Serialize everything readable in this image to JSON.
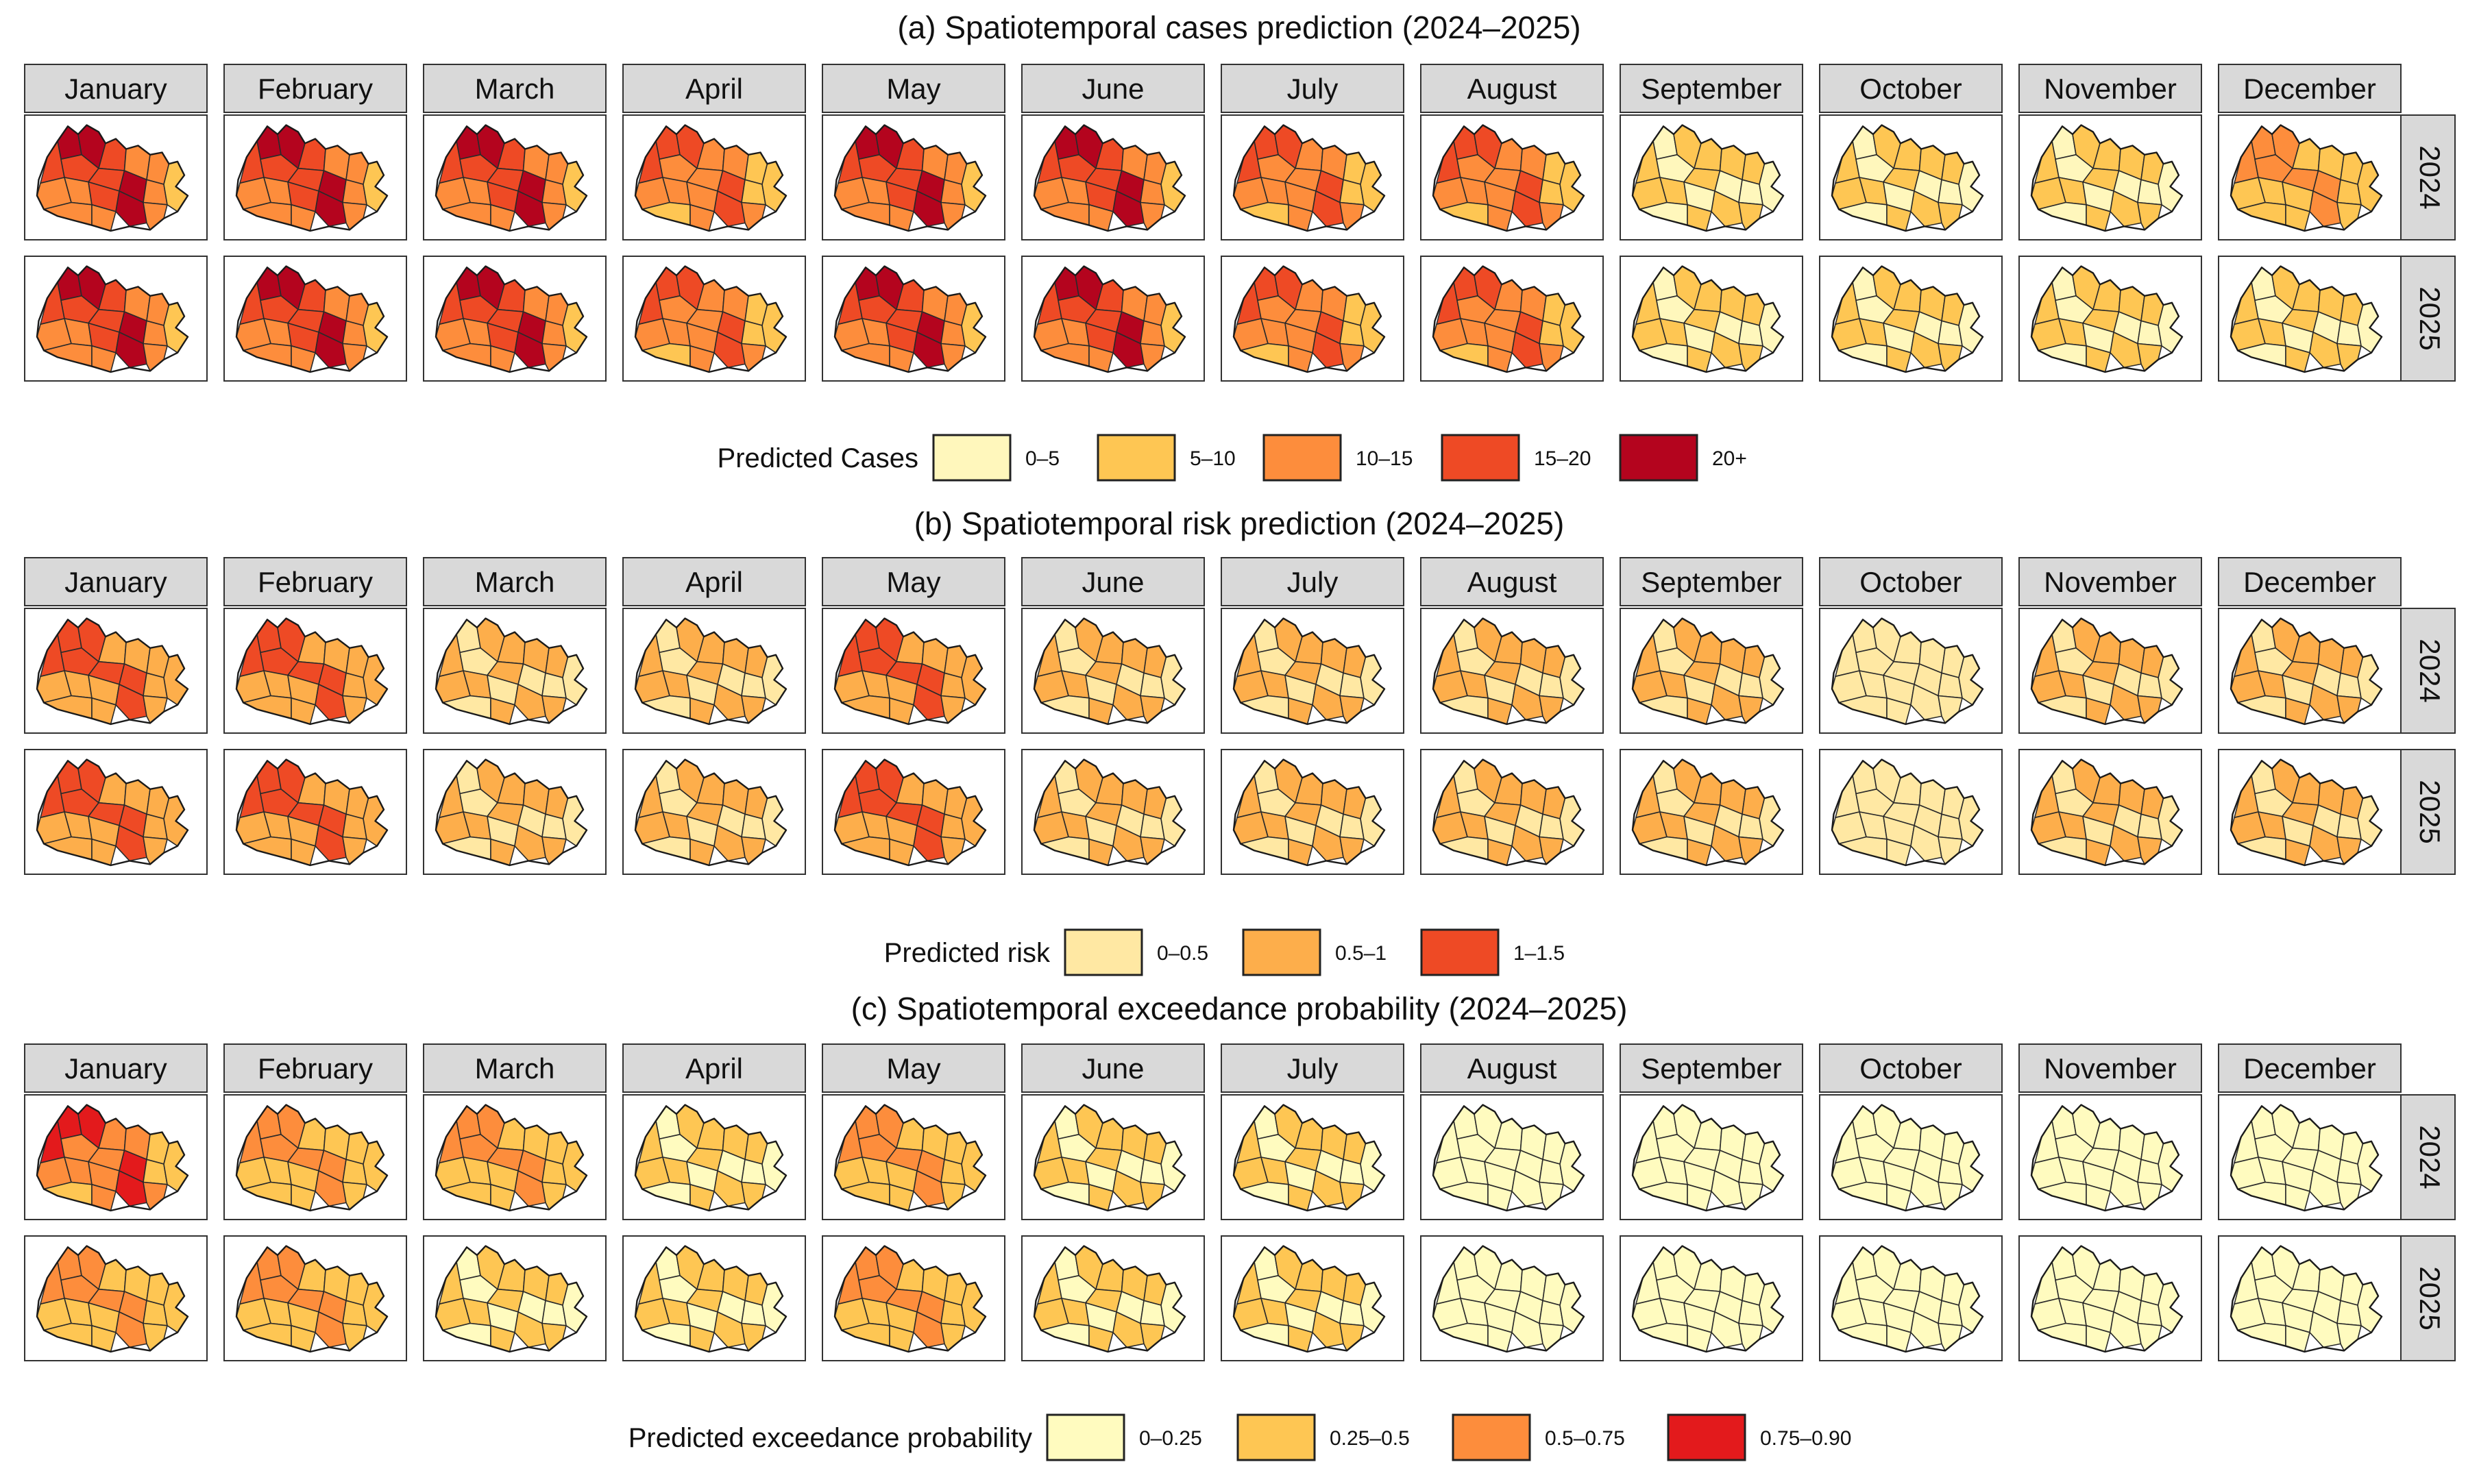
{
  "figure": {
    "months": [
      "January",
      "February",
      "March",
      "April",
      "May",
      "June",
      "July",
      "August",
      "September",
      "October",
      "November",
      "December"
    ],
    "years": [
      "2024",
      "2025"
    ]
  },
  "chart_data": [
    {
      "type": "choropleth",
      "title": "(a) Spatiotemporal cases prediction (2024–2025)",
      "facet_columns": [
        "January",
        "February",
        "March",
        "April",
        "May",
        "June",
        "July",
        "August",
        "September",
        "October",
        "November",
        "December"
      ],
      "facet_rows": [
        "2024",
        "2025"
      ],
      "legend": {
        "title": "Predicted Cases",
        "placement": "bottom",
        "items": [
          {
            "label": "0–5",
            "color": "#FFF7BC"
          },
          {
            "label": "5–10",
            "color": "#FEC653"
          },
          {
            "label": "10–15",
            "color": "#FD8D3C"
          },
          {
            "label": "15–20",
            "color": "#EE4A25"
          },
          {
            "label": "20+",
            "color": "#B4041E"
          }
        ]
      },
      "intensity_by_month": {
        "2024": [
          4,
          4,
          4,
          3,
          4,
          4,
          3,
          3,
          1,
          1,
          1,
          2
        ],
        "2025": [
          4,
          4,
          4,
          3,
          4,
          4,
          3,
          3,
          1,
          1,
          1,
          1
        ]
      }
    },
    {
      "type": "choropleth",
      "title": "(b) Spatiotemporal risk prediction (2024–2025)",
      "facet_columns": [
        "January",
        "February",
        "March",
        "April",
        "May",
        "June",
        "July",
        "August",
        "September",
        "October",
        "November",
        "December"
      ],
      "facet_rows": [
        "2024",
        "2025"
      ],
      "legend": {
        "title": "Predicted risk",
        "placement": "bottom",
        "items": [
          {
            "label": "0–0.5",
            "color": "#FFE8A3"
          },
          {
            "label": "0.5–1",
            "color": "#FDAE4B"
          },
          {
            "label": "1–1.5",
            "color": "#EE4A25"
          }
        ]
      },
      "intensity_by_month": {
        "2024": [
          2,
          2,
          1,
          1,
          2,
          1,
          1,
          1,
          1,
          0,
          1,
          1
        ],
        "2025": [
          2,
          2,
          1,
          1,
          2,
          1,
          1,
          1,
          1,
          0,
          1,
          1
        ]
      }
    },
    {
      "type": "choropleth",
      "title": "(c) Spatiotemporal exceedance probability (2024–2025)",
      "facet_columns": [
        "January",
        "February",
        "March",
        "April",
        "May",
        "June",
        "July",
        "August",
        "September",
        "October",
        "November",
        "December"
      ],
      "facet_rows": [
        "2024",
        "2025"
      ],
      "legend": {
        "title": "Predicted exceedance probability",
        "placement": "bottom",
        "items": [
          {
            "label": "0–0.25",
            "color": "#FFFBBF"
          },
          {
            "label": "0.25–0.5",
            "color": "#FEC653"
          },
          {
            "label": "0.5–0.75",
            "color": "#FD8D3C"
          },
          {
            "label": "0.75–0.90",
            "color": "#E31A1C"
          }
        ]
      },
      "intensity_by_month": {
        "2024": [
          3,
          2,
          2,
          1,
          2,
          1,
          1,
          0,
          0,
          0,
          0,
          0
        ],
        "2025": [
          2,
          2,
          1,
          1,
          2,
          1,
          1,
          0,
          0,
          0,
          0,
          0
        ]
      }
    }
  ]
}
